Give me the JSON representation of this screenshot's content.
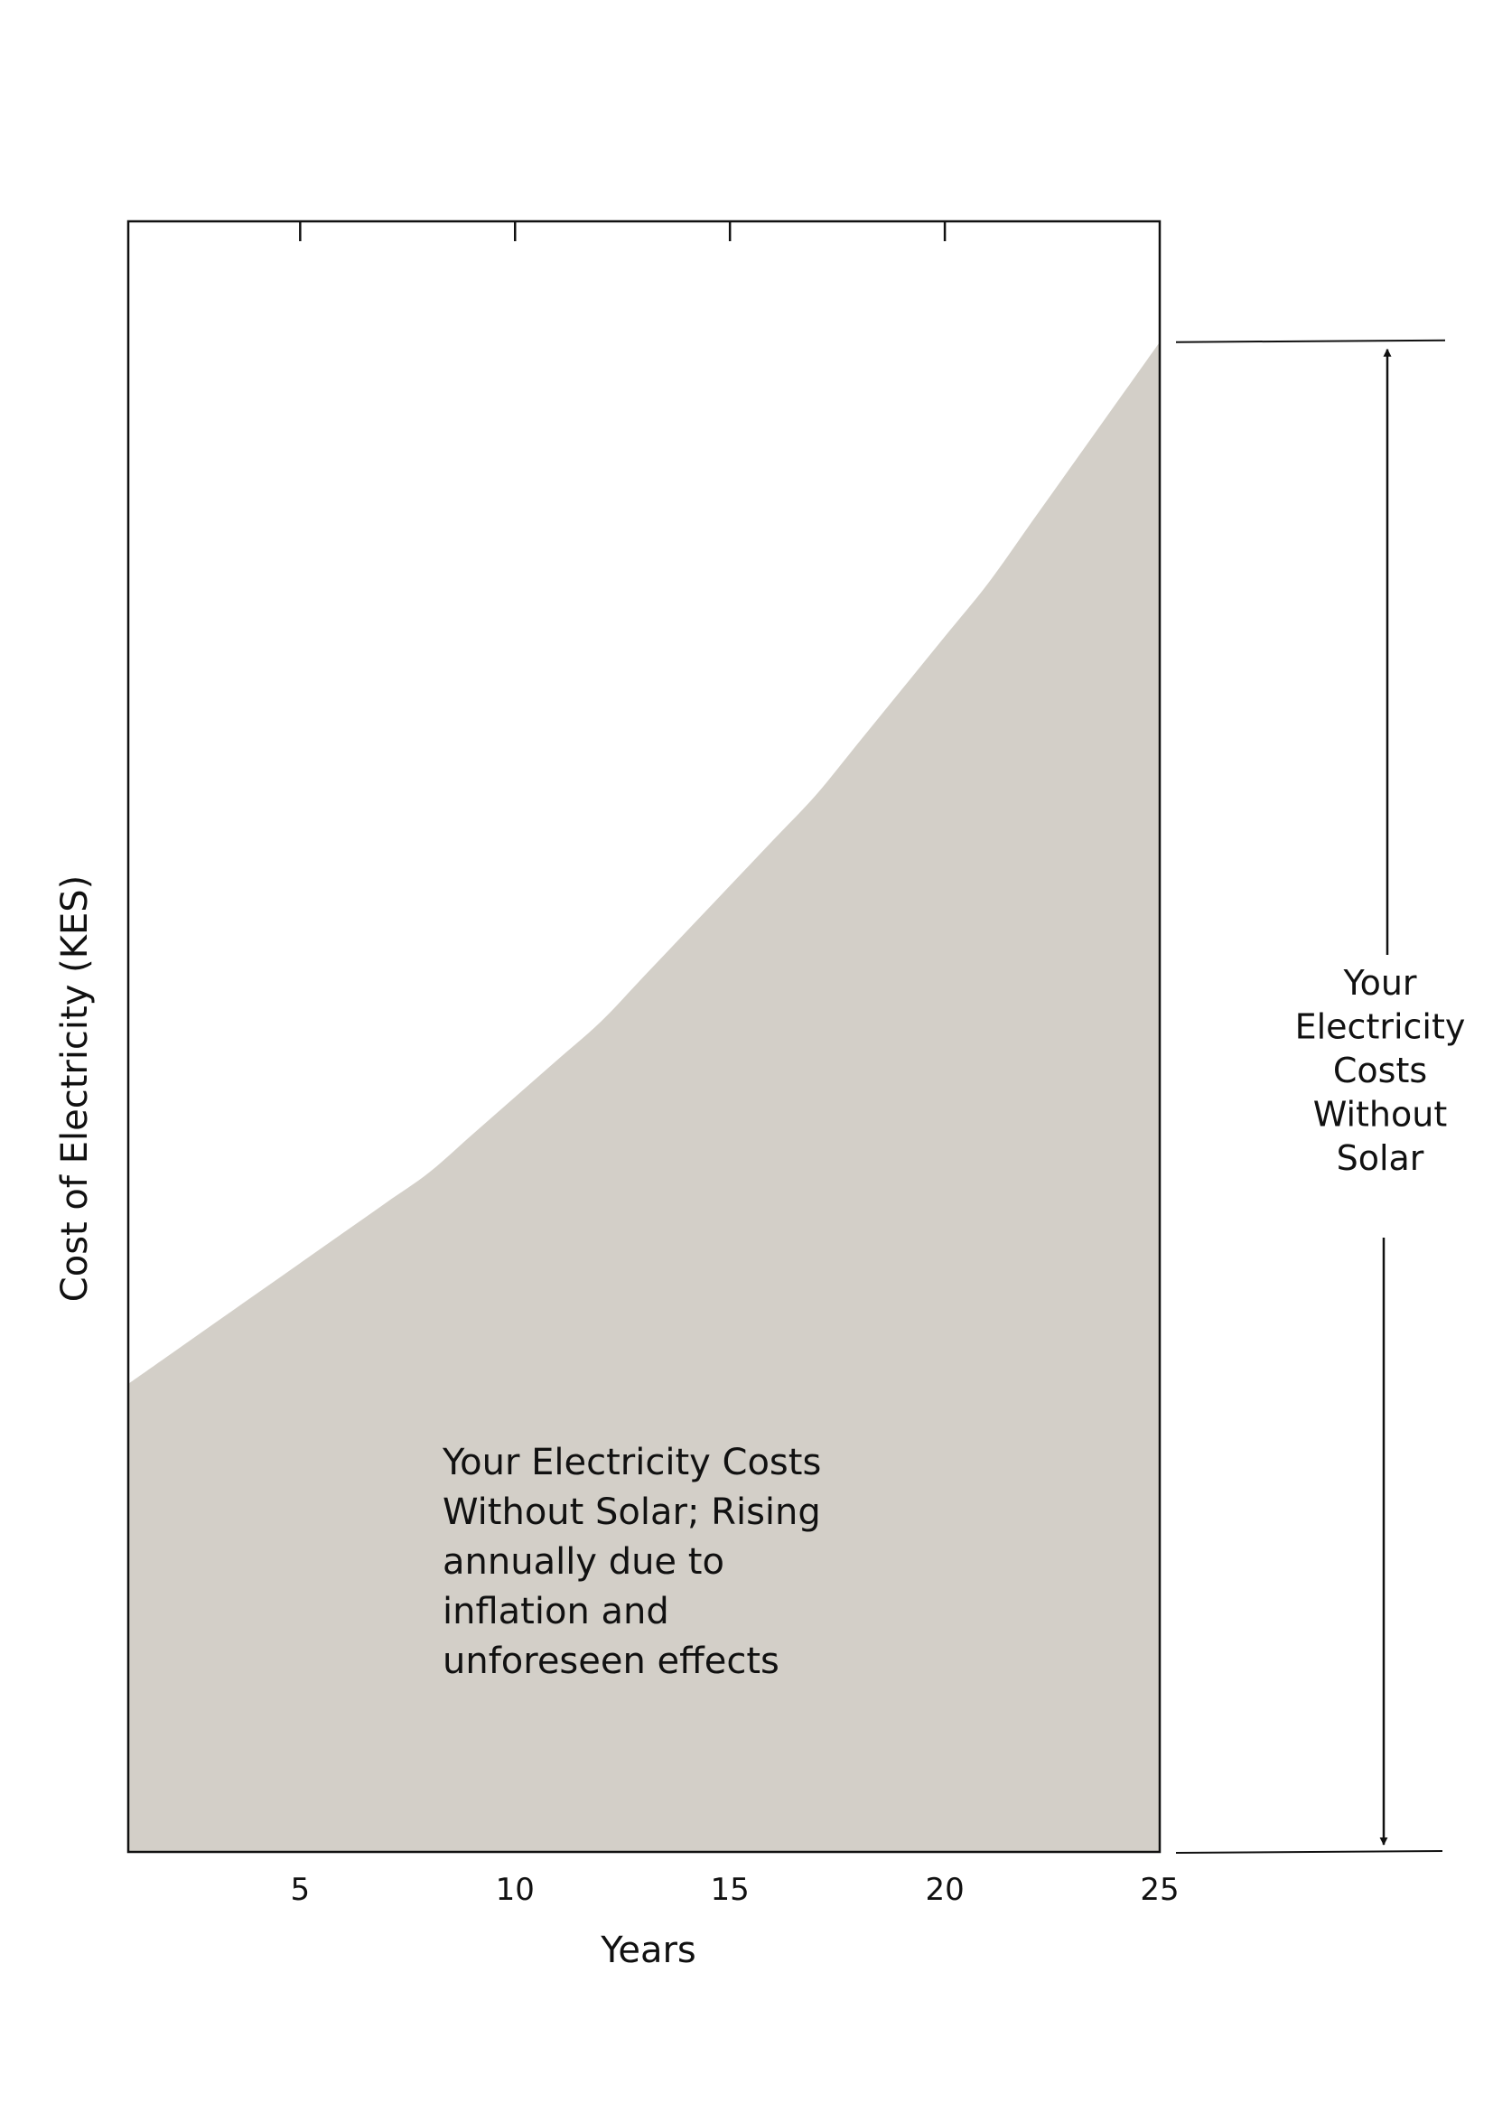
{
  "chart_data": {
    "type": "area",
    "title": "",
    "xlabel": "Years",
    "ylabel": "Cost of Electricity (KES)",
    "xlim": [
      1,
      25
    ],
    "ylim": [
      0,
      1.08
    ],
    "x_ticks": [
      5,
      10,
      15,
      20,
      25
    ],
    "y_ticks": [],
    "grid": false,
    "series": [
      {
        "x": [
          1,
          2,
          3,
          4,
          5,
          6,
          7,
          8,
          9,
          10,
          11,
          12,
          13,
          14,
          15,
          16,
          17,
          18,
          19,
          20,
          21,
          22,
          23,
          24,
          25
        ],
        "values": [
          0.31,
          0.33,
          0.35,
          0.37,
          0.39,
          0.41,
          0.43,
          0.45,
          0.475,
          0.5,
          0.525,
          0.55,
          0.58,
          0.61,
          0.64,
          0.67,
          0.7,
          0.735,
          0.77,
          0.805,
          0.84,
          0.88,
          0.92,
          0.96,
          1.0
        ],
        "color": "#d3cfc8"
      }
    ],
    "annotations": {
      "area_note_lines": [
        "Your Electricity Costs",
        "Without Solar; Rising",
        "annually due to",
        "inflation and",
        "unforeseen effects"
      ],
      "side_note_lines": [
        "Your",
        "Electricity",
        "Costs",
        "Without",
        "Solar"
      ]
    }
  }
}
